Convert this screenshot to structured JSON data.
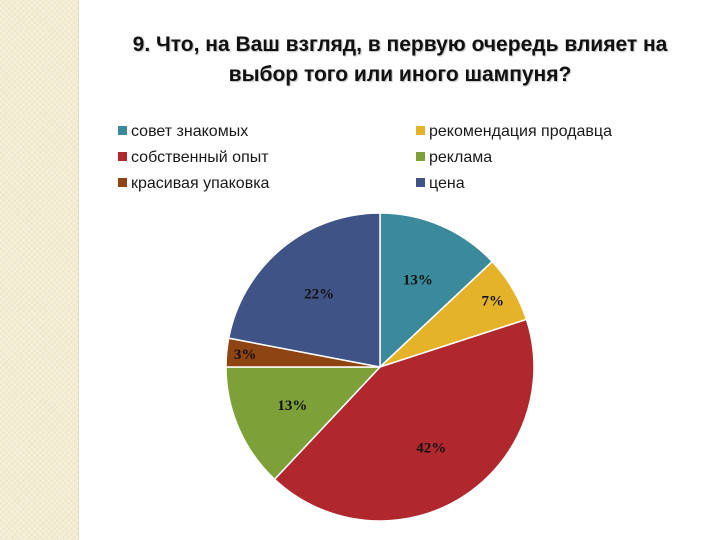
{
  "chart_data": {
    "type": "pie",
    "title_lines": [
      "9.  Что, на Ваш взгляд, в первую очередь влияет на",
      "выбор того или иного шампуня?"
    ],
    "legend_placement": "top",
    "slices": [
      {
        "name": "совет знакомых",
        "value": 13,
        "label": "13%",
        "color": "#3a8a9c"
      },
      {
        "name": "рекомендация продавца",
        "value": 7,
        "label": "7%",
        "color": "#e5b32a"
      },
      {
        "name": "собственный опыт",
        "value": 42,
        "label": "42%",
        "color": "#b0282e"
      },
      {
        "name": "реклама",
        "value": 13,
        "label": "13%",
        "color": "#7ea039"
      },
      {
        "name": "красивая упаковка",
        "value": 3,
        "label": "3%",
        "color": "#8f4414"
      },
      {
        "name": "цена",
        "value": 22,
        "label": "22%",
        "color": "#3f5386"
      }
    ]
  }
}
